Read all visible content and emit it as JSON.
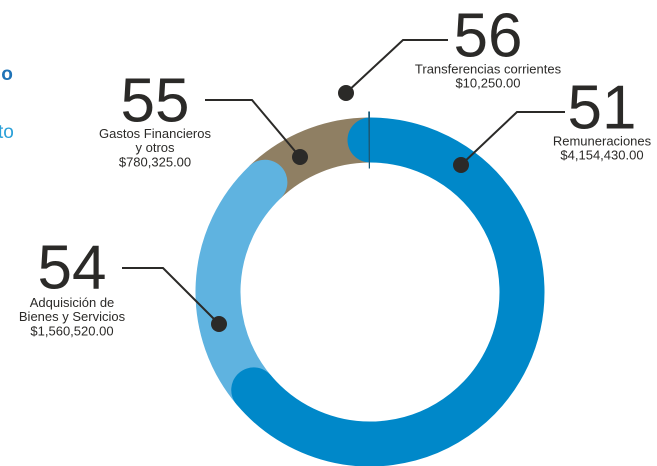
{
  "fragments": [
    "lo",
    "to"
  ],
  "chart_data": {
    "type": "donut",
    "codes": [
      "51",
      "54",
      "55",
      "56"
    ],
    "categories": [
      "Remuneraciones",
      "Adquisición de Bienes y Servicios",
      "Gastos Financieros y otros",
      "Transferencias corrientes"
    ],
    "values": [
      4154430,
      1560520,
      780325,
      10250
    ],
    "value_labels": [
      "$4,154,430.00",
      "$1,560,520.00",
      "$780,325.00",
      "$10,250.00"
    ],
    "colors": [
      "#0088c9",
      "#5fb3e0",
      "#8f7f63",
      "#1a5a78"
    ]
  }
}
